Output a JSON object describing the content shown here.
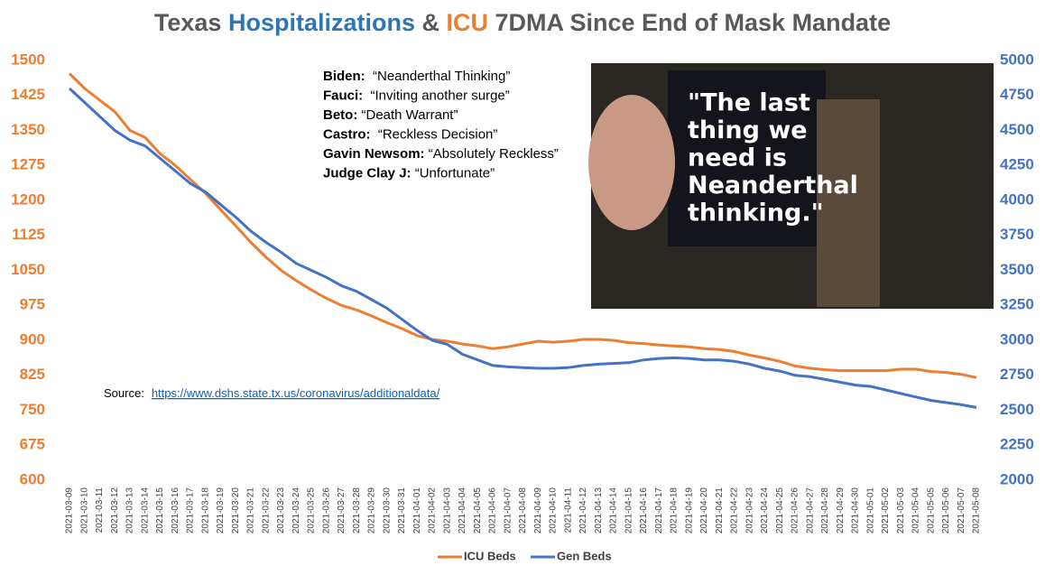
{
  "chart_data": {
    "type": "line",
    "title_parts": [
      {
        "text": "Texas ",
        "color": "#595959"
      },
      {
        "text": "Hospitalizations",
        "color": "#2e75b6"
      },
      {
        "text": " & ",
        "color": "#595959"
      },
      {
        "text": "ICU",
        "color": "#ed7d31"
      },
      {
        "text": " 7DMA Since End of Mask Mandate",
        "color": "#595959"
      }
    ],
    "x": [
      "2021-03-09",
      "2021-03-10",
      "2021-03-11",
      "2021-03-12",
      "2021-03-13",
      "2021-03-14",
      "2021-03-15",
      "2021-03-16",
      "2021-03-17",
      "2021-03-18",
      "2021-03-19",
      "2021-03-20",
      "2021-03-21",
      "2021-03-22",
      "2021-03-23",
      "2021-03-24",
      "2021-03-25",
      "2021-03-26",
      "2021-03-27",
      "2021-03-28",
      "2021-03-29",
      "2021-03-30",
      "2021-03-31",
      "2021-04-01",
      "2021-04-02",
      "2021-04-03",
      "2021-04-04",
      "2021-04-05",
      "2021-04-06",
      "2021-04-07",
      "2021-04-08",
      "2021-04-09",
      "2021-04-10",
      "2021-04-11",
      "2021-04-12",
      "2021-04-13",
      "2021-04-14",
      "2021-04-15",
      "2021-04-16",
      "2021-04-17",
      "2021-04-18",
      "2021-04-19",
      "2021-04-20",
      "2021-04-21",
      "2021-04-22",
      "2021-04-23",
      "2021-04-24",
      "2021-04-25",
      "2021-04-26",
      "2021-04-27",
      "2021-04-28",
      "2021-04-29",
      "2021-04-30",
      "2021-05-01",
      "2021-05-02",
      "2021-05-03",
      "2021-05-04",
      "2021-05-05",
      "2021-05-06",
      "2021-05-07",
      "2021-05-08"
    ],
    "series": [
      {
        "name": "ICU Beds",
        "color": "#ed7d31",
        "axis": "y",
        "values": [
          1472,
          1440,
          1415,
          1390,
          1350,
          1335,
          1300,
          1275,
          1245,
          1215,
          1180,
          1145,
          1110,
          1078,
          1050,
          1028,
          1008,
          990,
          975,
          965,
          952,
          938,
          925,
          910,
          902,
          898,
          892,
          888,
          882,
          886,
          892,
          898,
          896,
          898,
          902,
          902,
          900,
          895,
          893,
          890,
          888,
          886,
          882,
          880,
          876,
          868,
          862,
          855,
          845,
          840,
          837,
          835,
          835,
          835,
          835,
          838,
          838,
          833,
          831,
          827,
          820
        ]
      },
      {
        "name": "Gen Beds",
        "color": "#4472c4",
        "axis": "y2",
        "values": [
          4800,
          4700,
          4600,
          4500,
          4430,
          4390,
          4300,
          4210,
          4120,
          4060,
          3970,
          3880,
          3780,
          3700,
          3630,
          3550,
          3500,
          3450,
          3390,
          3350,
          3290,
          3230,
          3150,
          3070,
          3000,
          2970,
          2900,
          2860,
          2820,
          2810,
          2805,
          2800,
          2800,
          2805,
          2820,
          2830,
          2835,
          2840,
          2860,
          2870,
          2875,
          2870,
          2860,
          2860,
          2850,
          2830,
          2800,
          2780,
          2750,
          2740,
          2720,
          2700,
          2680,
          2670,
          2645,
          2620,
          2595,
          2570,
          2555,
          2540,
          2520
        ]
      }
    ],
    "ylim": [
      600,
      1500
    ],
    "yticks": [
      600,
      675,
      750,
      825,
      900,
      975,
      1050,
      1125,
      1200,
      1275,
      1350,
      1425,
      1500
    ],
    "y2lim": [
      2000,
      5000
    ],
    "y2ticks": [
      2000,
      2250,
      2500,
      2750,
      3000,
      3250,
      3500,
      3750,
      4000,
      4250,
      4500,
      4750,
      5000
    ],
    "legend": "bottom",
    "quotes": [
      {
        "speaker": "Biden:",
        "quote": "  “Neanderthal Thinking”"
      },
      {
        "speaker": "Fauci:",
        "quote": "  “Inviting another surge”"
      },
      {
        "speaker": "Beto:",
        "quote": " “Death Warrant”"
      },
      {
        "speaker": "Castro:",
        "quote": "  “Reckless Decision”"
      },
      {
        "speaker": "Gavin Newsom:",
        "quote": " “Absolutely Reckless”"
      },
      {
        "speaker": "Judge Clay J:",
        "quote": " “Unfortunate”"
      }
    ],
    "image_text": [
      "\"The last",
      "thing we",
      "need is",
      "Neanderthal",
      "thinking.\""
    ],
    "source_label": "Source:",
    "source_url": "https://www.dshs.state.tx.us/coronavirus/additionaldata/"
  }
}
